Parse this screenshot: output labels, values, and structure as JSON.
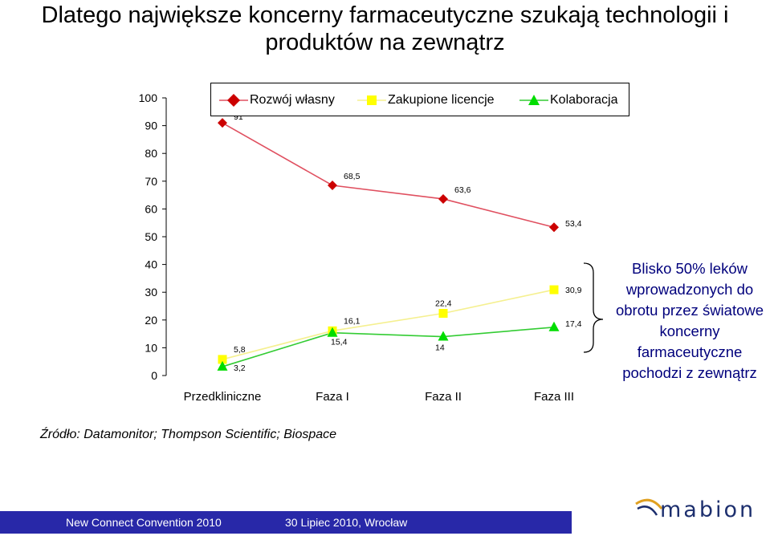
{
  "title": "Dlatego największe koncerny farmaceutyczne szukają technologii i produktów na zewnątrz",
  "colors": {
    "rozwoj": "#cc0000",
    "rozwoj_line": "#e05060",
    "licencje": "#ffff00",
    "licencje_line": "#f5f090",
    "kolaboracja": "#00dd00",
    "kolaboracja_line": "#33cc33",
    "note": "#00007c",
    "footer_bg": "#2828a8",
    "logo_accent": "#e0a020",
    "logo_text": "#1d2f6e"
  },
  "chart_data": {
    "type": "line",
    "categories": [
      "Przedkliniczne",
      "Faza I",
      "Faza II",
      "Faza III"
    ],
    "ylim": [
      0,
      100
    ],
    "yticks": [
      0,
      10,
      20,
      30,
      40,
      50,
      60,
      70,
      80,
      90,
      100
    ],
    "legend_position": "top",
    "grid": false,
    "series": [
      {
        "name": "Rozwój własny",
        "marker": "diamond",
        "values": [
          91,
          68.5,
          63.6,
          53.4
        ],
        "labels": [
          "91",
          "68,5",
          "63,6",
          "53,4"
        ]
      },
      {
        "name": "Zakupione licencje",
        "marker": "square",
        "values": [
          5.8,
          16.1,
          22.4,
          30.9
        ],
        "labels": [
          "5,8",
          "16,1",
          "22,4",
          "30,9"
        ]
      },
      {
        "name": "Kolaboracja",
        "marker": "triangle",
        "values": [
          3.2,
          15.4,
          14,
          17.4
        ],
        "labels": [
          "3,2",
          "15,4",
          "14",
          "17,4"
        ]
      }
    ]
  },
  "note": "Blisko 50% leków wprowadzonych do obrotu przez światowe koncerny farmaceutyczne pochodzi z zewnątrz",
  "source": "Źródło: Datamonitor; Thompson Scientific; Biospace",
  "footer": {
    "event": "New Connect Convention 2010",
    "date_place": "30 Lipiec 2010, Wrocław"
  },
  "logo": {
    "text": "mabion"
  }
}
